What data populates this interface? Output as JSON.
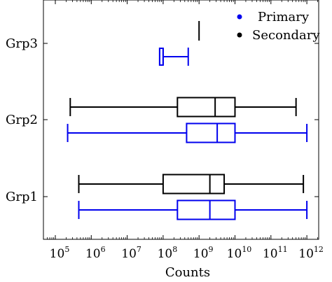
{
  "chart_data": {
    "type": "boxplot",
    "orientation": "horizontal",
    "xlabel": "Counts",
    "x_scale": "log",
    "xlim": [
      100000,
      10000000000000
    ],
    "x_ticks": [
      {
        "value": 100000,
        "base": "10",
        "exp": "5"
      },
      {
        "value": 1000000,
        "base": "10",
        "exp": "6"
      },
      {
        "value": 10000000,
        "base": "10",
        "exp": "7"
      },
      {
        "value": 100000000,
        "base": "10",
        "exp": "8"
      },
      {
        "value": 1000000000,
        "base": "10",
        "exp": "9"
      },
      {
        "value": 10000000000,
        "base": "10",
        "exp": "10"
      },
      {
        "value": 100000000000,
        "base": "10",
        "exp": "11"
      },
      {
        "value": 1000000000000,
        "base": "10",
        "exp": "12"
      }
    ],
    "categories": [
      "Grp1",
      "Grp2",
      "Grp3"
    ],
    "legend": {
      "position": "top-right"
    },
    "series": [
      {
        "name": "Primary",
        "color": "#0000ee",
        "boxes": [
          {
            "category": "Grp1",
            "min": 450000,
            "q1": 250000000,
            "median": 2000000000,
            "q3": 10000000000,
            "max": 1000000000000
          },
          {
            "category": "Grp2",
            "min": 220000,
            "q1": 450000000,
            "median": 3200000000,
            "q3": 10000000000,
            "max": 1000000000000
          },
          {
            "category": "Grp3",
            "min": 80000000,
            "q1": 80000000,
            "median": 100000000,
            "q3": 100000000,
            "max": 500000000
          }
        ]
      },
      {
        "name": "Secondary",
        "color": "#000000",
        "boxes": [
          {
            "category": "Grp1",
            "min": 450000,
            "q1": 100000000,
            "median": 2000000000,
            "q3": 5000000000,
            "max": 800000000000
          },
          {
            "category": "Grp2",
            "min": 260000,
            "q1": 250000000,
            "median": 2800000000,
            "q3": 10000000000,
            "max": 500000000000
          },
          {
            "category": "Grp3",
            "min": 1000000000,
            "q1": 1000000000,
            "median": 1000000000,
            "q3": 1000000000,
            "max": 1000000000
          }
        ]
      }
    ]
  }
}
